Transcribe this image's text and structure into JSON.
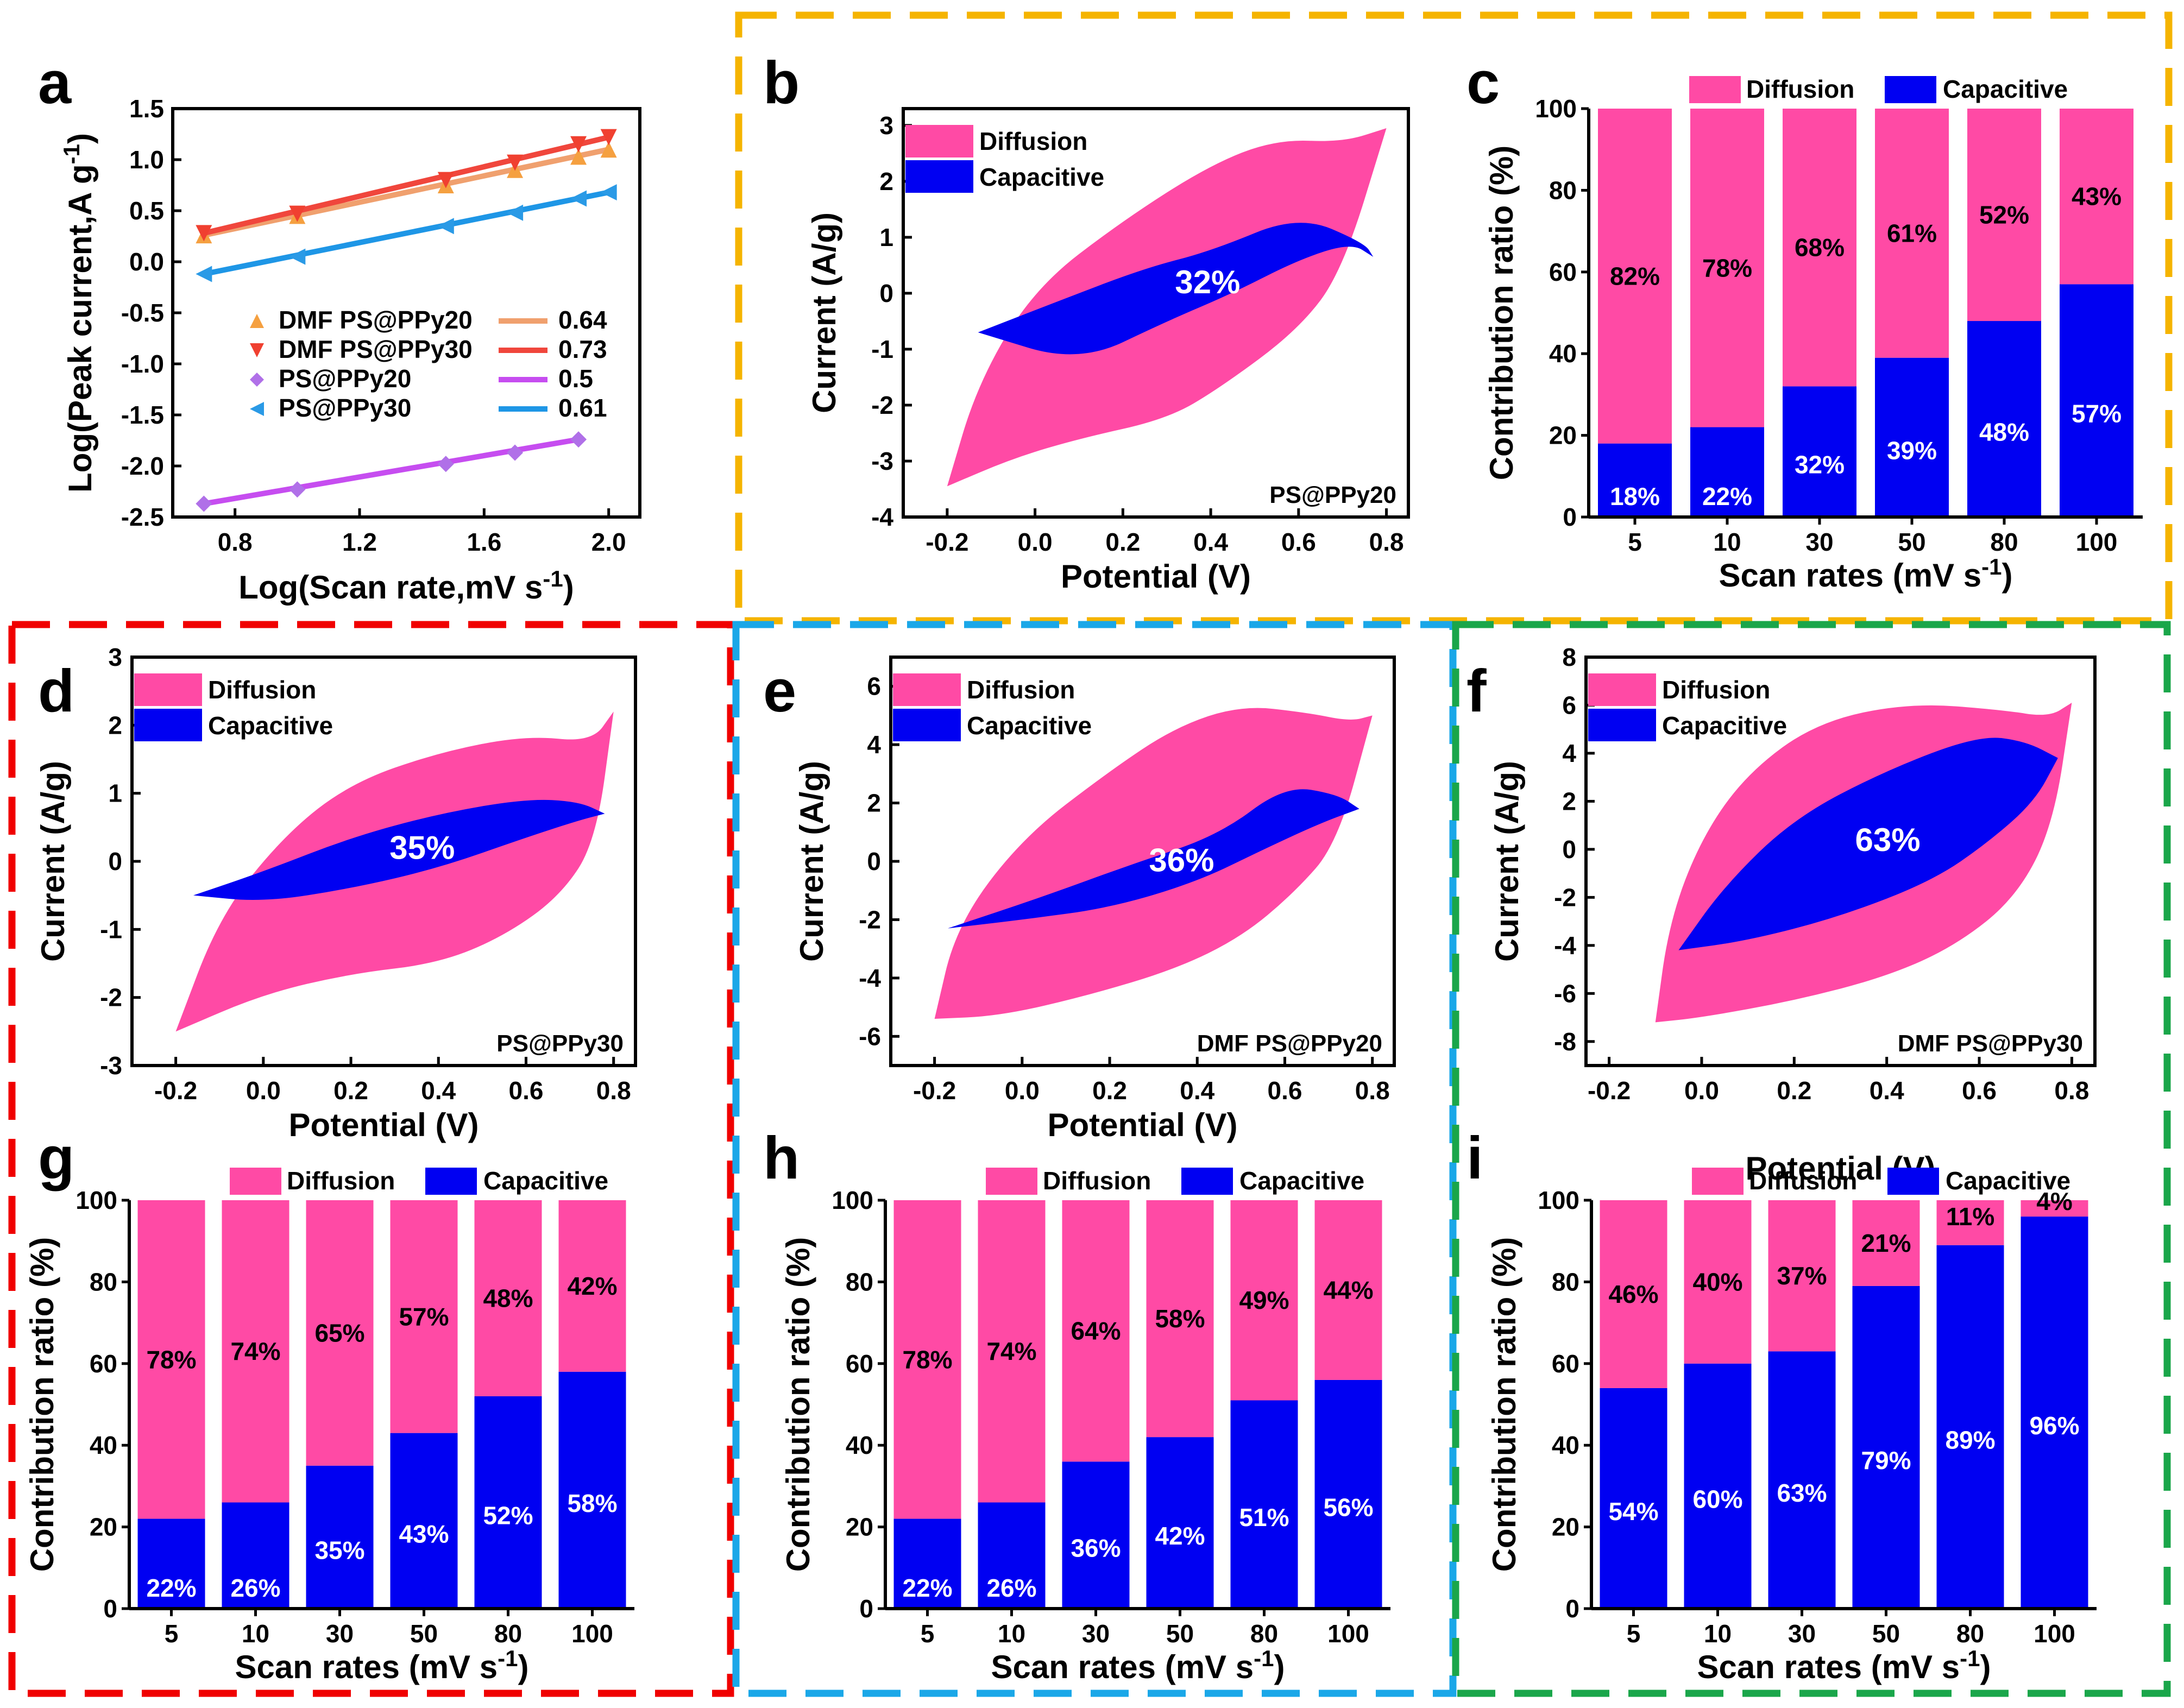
{
  "colors": {
    "diffusion": "#FF4AA5",
    "capacitive": "#0000F2",
    "border_orange": "#F5B400",
    "border_red": "#F00000",
    "border_blue": "#1AA7E8",
    "border_green": "#1AA64A",
    "line_dmf20": "#F0A06E",
    "line_dmf30": "#F0463C",
    "line_ps20": "#C64DF0",
    "line_ps30": "#1E96E6"
  },
  "chart_data": [
    {
      "id": "a",
      "type": "scatter",
      "label": "a",
      "xlabel": "Log(Scan rate,mV s",
      "xlabel_sup": "-1",
      "xlabel_end": ")",
      "ylabel": "Log(Peak current,A g",
      "ylabel_sup": "-1",
      "ylabel_end": ")",
      "xlim": [
        0.6,
        2.1
      ],
      "ylim": [
        -2.5,
        1.5
      ],
      "xticks": [
        "0.8",
        "1.2",
        "1.6",
        "2.0"
      ],
      "xtick_values": [
        0.8,
        1.2,
        1.6,
        2.0
      ],
      "yticks": [
        "-2.5",
        "-2.0",
        "-1.5",
        "-1.0",
        "-0.5",
        "0.0",
        "0.5",
        "1.0",
        "1.5"
      ],
      "ytick_values": [
        -2.5,
        -2.0,
        -1.5,
        -1.0,
        -0.5,
        0.0,
        0.5,
        1.0,
        1.5
      ],
      "x": [
        0.7,
        1.0,
        1.477,
        1.699,
        1.903,
        2.0
      ],
      "series": [
        {
          "name": "DMF PS@PPy20",
          "marker": "triangle-up",
          "slope": "0.64",
          "values": [
            0.26,
            0.45,
            0.75,
            0.9,
            1.03,
            1.1
          ]
        },
        {
          "name": "DMF PS@PPy30",
          "marker": "triangle-down",
          "slope": "0.73",
          "values": [
            0.28,
            0.47,
            0.8,
            0.97,
            1.15,
            1.22
          ]
        },
        {
          "name": "PS@PPy20",
          "marker": "diamond",
          "slope": "0.5",
          "values": [
            -2.37,
            -2.23,
            -1.98,
            -1.87,
            -1.74,
            null
          ]
        },
        {
          "name": "PS@PPy30",
          "marker": "triangle-left",
          "slope": "0.61",
          "values": [
            -0.12,
            0.05,
            0.35,
            0.48,
            0.62,
            0.68
          ]
        }
      ]
    },
    {
      "id": "b",
      "type": "area",
      "label": "b",
      "sample": "PS@PPy20",
      "xlabel": "Potential (V)",
      "ylabel": "Current (A/g)",
      "xlim": [
        -0.3,
        0.85
      ],
      "ylim": [
        -4,
        3.3
      ],
      "xticks": [
        "-0.2",
        "0.0",
        "0.2",
        "0.4",
        "0.6",
        "0.8"
      ],
      "xtick_values": [
        -0.2,
        0.0,
        0.2,
        0.4,
        0.6,
        0.8
      ],
      "yticks": [
        "-4",
        "-3",
        "-2",
        "-1",
        "0",
        "1",
        "2",
        "3"
      ],
      "ytick_values": [
        -4,
        -3,
        -2,
        -1,
        0,
        1,
        2,
        3
      ],
      "legend": [
        "Diffusion",
        "Capacitive"
      ],
      "capacitive_percent": "32%",
      "outer_upper": [
        [
          -0.2,
          -3.45
        ],
        [
          -0.13,
          -1.6
        ],
        [
          0.0,
          0.1
        ],
        [
          0.2,
          1.3
        ],
        [
          0.4,
          2.3
        ],
        [
          0.55,
          2.75
        ],
        [
          0.7,
          2.7
        ],
        [
          0.8,
          2.95
        ]
      ],
      "outer_lower": [
        [
          -0.2,
          -3.45
        ],
        [
          -0.05,
          -2.95
        ],
        [
          0.1,
          -2.6
        ],
        [
          0.3,
          -2.25
        ],
        [
          0.42,
          -1.7
        ],
        [
          0.6,
          -0.65
        ],
        [
          0.7,
          0.4
        ],
        [
          0.8,
          2.95
        ]
      ],
      "inner_upper": [
        [
          -0.13,
          -0.7
        ],
        [
          0.05,
          -0.15
        ],
        [
          0.25,
          0.45
        ],
        [
          0.4,
          0.75
        ],
        [
          0.6,
          1.4
        ],
        [
          0.75,
          0.9
        ],
        [
          0.77,
          0.65
        ]
      ],
      "inner_lower": [
        [
          -0.13,
          -0.7
        ],
        [
          0.1,
          -1.25
        ],
        [
          0.3,
          -0.5
        ],
        [
          0.45,
          0.0
        ],
        [
          0.6,
          0.6
        ],
        [
          0.72,
          0.9
        ],
        [
          0.77,
          0.65
        ]
      ]
    },
    {
      "id": "c",
      "type": "bar",
      "label": "c",
      "xlabel": "Scan rates (mV s",
      "xlabel_sup": "-1",
      "xlabel_end": ")",
      "ylabel": "Contribution ratio (%)",
      "ylim": [
        0,
        100
      ],
      "yticks": [
        "0",
        "20",
        "40",
        "60",
        "80",
        "100"
      ],
      "legend": [
        "Diffusion",
        "Capacitive"
      ],
      "categories": [
        "5",
        "10",
        "30",
        "50",
        "80",
        "100"
      ],
      "series": [
        {
          "name": "Capacitive",
          "values": [
            18,
            22,
            32,
            39,
            48,
            57
          ],
          "labels": [
            "18%",
            "22%",
            "32%",
            "39%",
            "48%",
            "57%"
          ]
        },
        {
          "name": "Diffusion",
          "values": [
            82,
            78,
            68,
            61,
            52,
            43
          ],
          "labels": [
            "82%",
            "78%",
            "68%",
            "61%",
            "52%",
            "43%"
          ]
        }
      ]
    },
    {
      "id": "d",
      "type": "area",
      "label": "d",
      "sample": "PS@PPy30",
      "xlabel": "Potential (V)",
      "ylabel": "Current (A/g)",
      "xlim": [
        -0.3,
        0.85
      ],
      "ylim": [
        -3,
        3
      ],
      "xticks": [
        "-0.2",
        "0.0",
        "0.2",
        "0.4",
        "0.6",
        "0.8"
      ],
      "xtick_values": [
        -0.2,
        0.0,
        0.2,
        0.4,
        0.6,
        0.8
      ],
      "yticks": [
        "-3",
        "-2",
        "-1",
        "0",
        "1",
        "2",
        "3"
      ],
      "ytick_values": [
        -3,
        -2,
        -1,
        0,
        1,
        2,
        3
      ],
      "legend": [
        "Diffusion",
        "Capacitive"
      ],
      "capacitive_percent": "35%",
      "outer_upper": [
        [
          -0.2,
          -2.5
        ],
        [
          -0.1,
          -0.8
        ],
        [
          0.05,
          0.4
        ],
        [
          0.2,
          1.15
        ],
        [
          0.4,
          1.6
        ],
        [
          0.6,
          1.85
        ],
        [
          0.75,
          1.75
        ],
        [
          0.8,
          2.2
        ]
      ],
      "outer_lower": [
        [
          -0.2,
          -2.5
        ],
        [
          0.0,
          -1.95
        ],
        [
          0.2,
          -1.65
        ],
        [
          0.4,
          -1.5
        ],
        [
          0.55,
          -1.1
        ],
        [
          0.68,
          -0.5
        ],
        [
          0.76,
          0.3
        ],
        [
          0.8,
          2.2
        ]
      ],
      "inner_upper": [
        [
          -0.16,
          -0.5
        ],
        [
          0.0,
          -0.15
        ],
        [
          0.2,
          0.35
        ],
        [
          0.4,
          0.7
        ],
        [
          0.6,
          0.92
        ],
        [
          0.72,
          0.88
        ],
        [
          0.78,
          0.7
        ]
      ],
      "inner_lower": [
        [
          -0.16,
          -0.5
        ],
        [
          0.0,
          -0.6
        ],
        [
          0.2,
          -0.4
        ],
        [
          0.4,
          -0.1
        ],
        [
          0.6,
          0.35
        ],
        [
          0.72,
          0.6
        ],
        [
          0.78,
          0.7
        ]
      ]
    },
    {
      "id": "e",
      "type": "area",
      "label": "e",
      "sample": "DMF PS@PPy20",
      "xlabel": "Potential (V)",
      "ylabel": "Current (A/g)",
      "xlim": [
        -0.3,
        0.85
      ],
      "ylim": [
        -7,
        7
      ],
      "xticks": [
        "-0.2",
        "0.0",
        "0.2",
        "0.4",
        "0.6",
        "0.8"
      ],
      "xtick_values": [
        -0.2,
        0.0,
        0.2,
        0.4,
        0.6,
        0.8
      ],
      "yticks": [
        "-6",
        "-4",
        "-2",
        "0",
        "2",
        "4",
        "6"
      ],
      "ytick_values": [
        -6,
        -4,
        -2,
        0,
        2,
        4,
        6
      ],
      "legend": [
        "Diffusion",
        "Capacitive"
      ],
      "capacitive_percent": "36%",
      "outer_upper": [
        [
          -0.2,
          -5.4
        ],
        [
          -0.15,
          -2.2
        ],
        [
          0.0,
          0.8
        ],
        [
          0.2,
          3.1
        ],
        [
          0.35,
          4.6
        ],
        [
          0.5,
          5.35
        ],
        [
          0.65,
          5.1
        ],
        [
          0.75,
          4.8
        ],
        [
          0.8,
          5.0
        ]
      ],
      "outer_lower": [
        [
          -0.2,
          -5.4
        ],
        [
          -0.05,
          -5.3
        ],
        [
          0.15,
          -4.6
        ],
        [
          0.35,
          -3.7
        ],
        [
          0.5,
          -2.6
        ],
        [
          0.62,
          -1.1
        ],
        [
          0.72,
          0.6
        ],
        [
          0.8,
          5.0
        ]
      ],
      "inner_upper": [
        [
          -0.17,
          -2.3
        ],
        [
          0.05,
          -1.2
        ],
        [
          0.25,
          -0.1
        ],
        [
          0.45,
          0.9
        ],
        [
          0.6,
          2.6
        ],
        [
          0.72,
          2.3
        ],
        [
          0.77,
          1.8
        ]
      ],
      "inner_lower": [
        [
          -0.17,
          -2.3
        ],
        [
          0.0,
          -2.0
        ],
        [
          0.2,
          -1.6
        ],
        [
          0.4,
          -0.7
        ],
        [
          0.55,
          0.4
        ],
        [
          0.68,
          1.3
        ],
        [
          0.77,
          1.8
        ]
      ]
    },
    {
      "id": "f",
      "type": "area",
      "label": "f",
      "sample": "DMF PS@PPy30",
      "xlabel": "Potential (V)",
      "ylabel": "Current (A/g)",
      "xlim": [
        -0.25,
        0.85
      ],
      "ylim": [
        -9,
        8
      ],
      "xticks": [
        "-0.2",
        "0.0",
        "0.2",
        "0.4",
        "0.6",
        "0.8"
      ],
      "xtick_values": [
        -0.2,
        0.0,
        0.2,
        0.4,
        0.6,
        0.8
      ],
      "yticks": [
        "-8",
        "-6",
        "-4",
        "-2",
        "0",
        "2",
        "4",
        "6",
        "8"
      ],
      "ytick_values": [
        -8,
        -6,
        -4,
        -2,
        0,
        2,
        4,
        6,
        8
      ],
      "legend": [
        "Diffusion",
        "Capacitive"
      ],
      "capacitive_percent": "63%",
      "outer_upper": [
        [
          -0.1,
          -7.2
        ],
        [
          -0.07,
          -3.0
        ],
        [
          0.0,
          0.5
        ],
        [
          0.1,
          3.2
        ],
        [
          0.25,
          5.3
        ],
        [
          0.45,
          6.1
        ],
        [
          0.65,
          5.8
        ],
        [
          0.75,
          5.5
        ],
        [
          0.8,
          6.1
        ]
      ],
      "outer_lower": [
        [
          -0.1,
          -7.2
        ],
        [
          0.0,
          -7.0
        ],
        [
          0.2,
          -6.3
        ],
        [
          0.4,
          -5.3
        ],
        [
          0.55,
          -4.0
        ],
        [
          0.68,
          -2.0
        ],
        [
          0.76,
          1.0
        ],
        [
          0.8,
          6.1
        ]
      ],
      "inner_upper": [
        [
          -0.05,
          -4.2
        ],
        [
          0.05,
          -1.5
        ],
        [
          0.2,
          1.3
        ],
        [
          0.4,
          3.3
        ],
        [
          0.6,
          4.75
        ],
        [
          0.7,
          4.5
        ],
        [
          0.77,
          3.8
        ]
      ],
      "inner_lower": [
        [
          -0.05,
          -4.2
        ],
        [
          0.1,
          -3.8
        ],
        [
          0.3,
          -2.8
        ],
        [
          0.5,
          -1.3
        ],
        [
          0.62,
          0.3
        ],
        [
          0.72,
          2.0
        ],
        [
          0.77,
          3.8
        ]
      ]
    },
    {
      "id": "g",
      "type": "bar",
      "label": "g",
      "xlabel": "Scan rates (mV s",
      "xlabel_sup": "-1",
      "xlabel_end": ")",
      "ylabel": "Contribution ratio (%)",
      "ylim": [
        0,
        100
      ],
      "yticks": [
        "0",
        "20",
        "40",
        "60",
        "80",
        "100"
      ],
      "legend": [
        "Diffusion",
        "Capacitive"
      ],
      "categories": [
        "5",
        "10",
        "30",
        "50",
        "80",
        "100"
      ],
      "series": [
        {
          "name": "Capacitive",
          "values": [
            22,
            26,
            35,
            43,
            52,
            58
          ],
          "labels": [
            "22%",
            "26%",
            "35%",
            "43%",
            "52%",
            "58%"
          ]
        },
        {
          "name": "Diffusion",
          "values": [
            78,
            74,
            65,
            57,
            48,
            42
          ],
          "labels": [
            "78%",
            "74%",
            "65%",
            "57%",
            "48%",
            "42%"
          ]
        }
      ]
    },
    {
      "id": "h",
      "type": "bar",
      "label": "h",
      "xlabel": "Scan rates (mV s",
      "xlabel_sup": "-1",
      "xlabel_end": ")",
      "ylabel": "Contribution ratio (%)",
      "ylim": [
        0,
        100
      ],
      "yticks": [
        "0",
        "20",
        "40",
        "60",
        "80",
        "100"
      ],
      "legend": [
        "Diffusion",
        "Capacitive"
      ],
      "categories": [
        "5",
        "10",
        "30",
        "50",
        "80",
        "100"
      ],
      "series": [
        {
          "name": "Capacitive",
          "values": [
            22,
            26,
            36,
            42,
            51,
            56
          ],
          "labels": [
            "22%",
            "26%",
            "36%",
            "42%",
            "51%",
            "56%"
          ]
        },
        {
          "name": "Diffusion",
          "values": [
            78,
            74,
            64,
            58,
            49,
            44
          ],
          "labels": [
            "78%",
            "74%",
            "64%",
            "58%",
            "49%",
            "44%"
          ]
        }
      ]
    },
    {
      "id": "i",
      "type": "bar",
      "label": "i",
      "xlabel": "Scan rates (mV s",
      "xlabel_sup": "-1",
      "xlabel_end": ")",
      "ylabel": "Contribution ratio (%)",
      "ylim": [
        0,
        100
      ],
      "yticks": [
        "0",
        "20",
        "40",
        "60",
        "80",
        "100"
      ],
      "legend": [
        "Diffusion",
        "Capacitive"
      ],
      "categories": [
        "5",
        "10",
        "30",
        "50",
        "80",
        "100"
      ],
      "series": [
        {
          "name": "Capacitive",
          "values": [
            54,
            60,
            63,
            79,
            89,
            96
          ],
          "labels": [
            "54%",
            "60%",
            "63%",
            "79%",
            "89%",
            "96%"
          ]
        },
        {
          "name": "Diffusion",
          "values": [
            46,
            40,
            37,
            21,
            11,
            4
          ],
          "labels": [
            "46%",
            "40%",
            "37%",
            "21%",
            "11%",
            "4%"
          ]
        }
      ]
    }
  ]
}
